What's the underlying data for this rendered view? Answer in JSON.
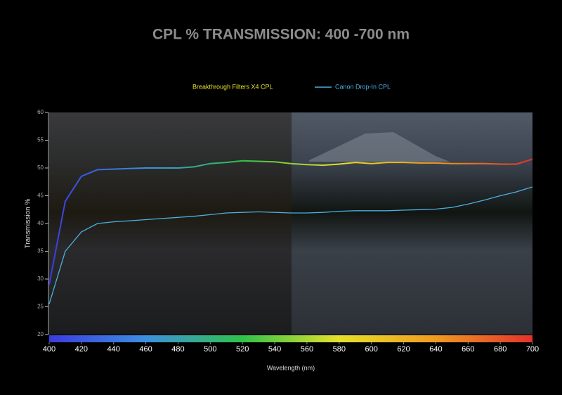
{
  "chart_data": {
    "type": "line",
    "title": "CPL % TRANSMISSION: 400 -700 nm",
    "x_label": "Wavelength (nm)",
    "y_label": "Transmission %",
    "x": [
      400,
      410,
      420,
      430,
      440,
      450,
      460,
      470,
      480,
      490,
      500,
      510,
      520,
      530,
      540,
      550,
      560,
      570,
      580,
      590,
      600,
      610,
      620,
      630,
      640,
      650,
      660,
      670,
      680,
      690,
      700
    ],
    "series": [
      {
        "name": "Breakthrough Filters X4 CPL",
        "colors": [
          "#3b3be0",
          "#3d8fe0",
          "#2fc24a",
          "#e6e02a",
          "#f09a20",
          "#e3322b"
        ],
        "label_color": "#e6e02a",
        "values": [
          29,
          44,
          48.5,
          49.7,
          49.8,
          49.9,
          50,
          50,
          50,
          50.2,
          50.8,
          51,
          51.3,
          51.2,
          51.1,
          50.8,
          50.6,
          50.5,
          50.7,
          51,
          50.8,
          51,
          51,
          50.9,
          50.9,
          50.8,
          50.8,
          50.8,
          50.7,
          50.7,
          51.6
        ]
      },
      {
        "name": "Canon Drop-In CPL",
        "color": "#4ab0e0",
        "label_color": "#4ab0e0",
        "values": [
          25.5,
          35,
          38.5,
          40,
          40.3,
          40.5,
          40.7,
          40.9,
          41.1,
          41.3,
          41.6,
          41.9,
          42,
          42.1,
          42,
          41.9,
          41.9,
          42,
          42.2,
          42.3,
          42.3,
          42.3,
          42.4,
          42.5,
          42.6,
          42.9,
          43.5,
          44.2,
          45,
          45.7,
          46.6
        ]
      }
    ],
    "xlim": [
      400,
      700
    ],
    "ylim": [
      20,
      60
    ],
    "xticks": [
      400,
      420,
      440,
      460,
      480,
      500,
      520,
      540,
      560,
      580,
      600,
      620,
      640,
      660,
      680,
      700
    ],
    "yticks": [
      20,
      25,
      30,
      35,
      40,
      45,
      50,
      55,
      60
    ],
    "grid": false
  }
}
